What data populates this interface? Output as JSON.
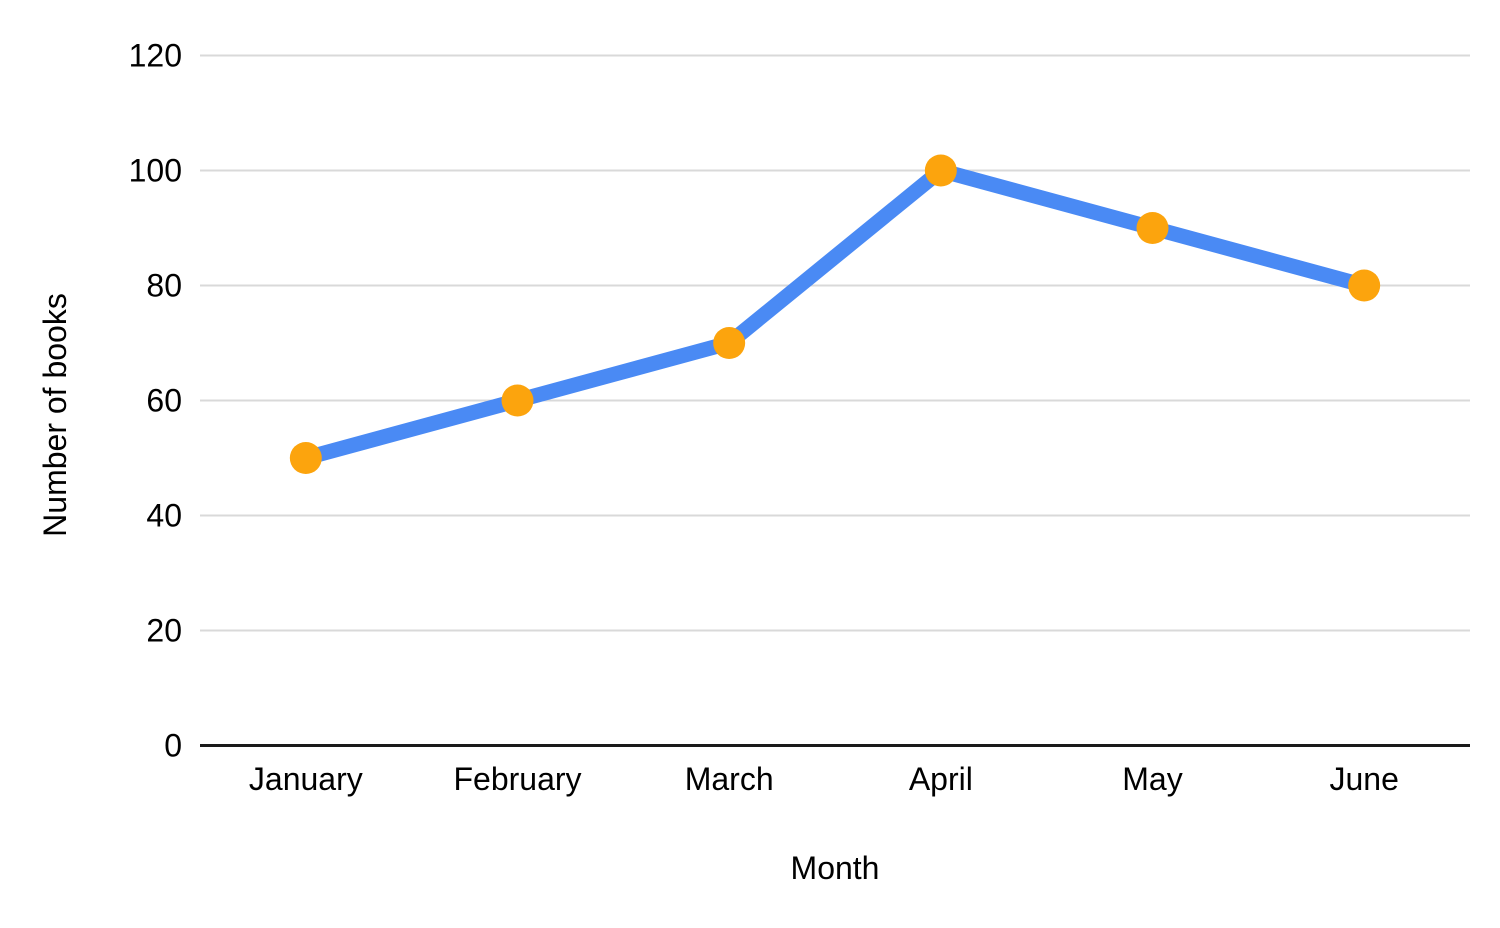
{
  "chart_data": {
    "type": "line",
    "categories": [
      "January",
      "February",
      "March",
      "April",
      "May",
      "June"
    ],
    "series": [
      {
        "name": "Number of books",
        "values": [
          50,
          60,
          70,
          100,
          90,
          80
        ]
      }
    ],
    "title": "",
    "xlabel": "Month",
    "ylabel": "Number of books",
    "ylim": [
      0,
      120
    ],
    "ytick_step": 20,
    "ytick_labels": [
      "0",
      "20",
      "40",
      "60",
      "80",
      "100",
      "120"
    ],
    "grid": true,
    "legend_position": "none",
    "colors": {
      "line": "#4a8af4",
      "point": "#fca40d",
      "grid": "#d9d9d9",
      "axis": "#1a1a1a",
      "text": "#000000"
    }
  }
}
